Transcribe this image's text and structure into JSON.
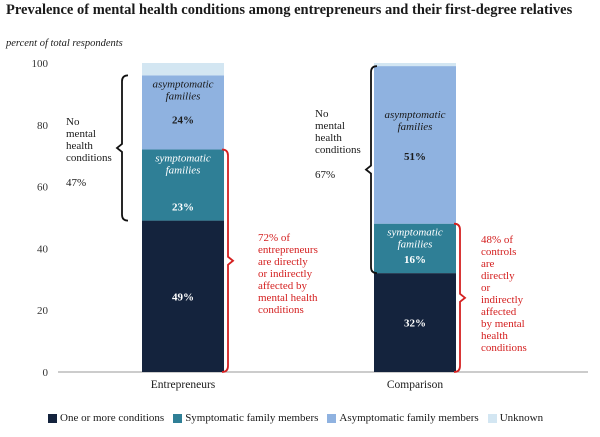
{
  "title": "Prevalence of mental health conditions among entrepreneurs and their first-degree relatives",
  "subtitle": "percent of total respondents",
  "chart_data": {
    "type": "bar",
    "stacked": true,
    "categories": [
      "Entrepreneurs",
      "Comparison"
    ],
    "ylim": [
      0,
      100
    ],
    "yticks": [
      0,
      20,
      40,
      60,
      80,
      100
    ],
    "series": [
      {
        "name": "One or more conditions",
        "color": "#14233d",
        "values": [
          49,
          32
        ],
        "labels": [
          "49%",
          "32%"
        ],
        "inner_label": [
          "",
          ""
        ]
      },
      {
        "name": "Symptomatic family members",
        "color": "#2f7f96",
        "values": [
          23,
          16
        ],
        "labels": [
          "23%",
          "16%"
        ],
        "inner_label": [
          "symptomatic families",
          "symptomatic families"
        ]
      },
      {
        "name": "Asymptomatic family members",
        "color": "#8fb2e0",
        "values": [
          24,
          51
        ],
        "labels": [
          "24%",
          "51%"
        ],
        "inner_label": [
          "asymptomatic families",
          "asymptomatic families"
        ]
      },
      {
        "name": "Unknown",
        "color": "#d3e6f2",
        "values": [
          4,
          1
        ],
        "labels": [
          "",
          ""
        ],
        "inner_label": [
          "",
          ""
        ]
      }
    ],
    "annotations": {
      "no_condition": [
        {
          "text": "No mental health conditions",
          "value": "47%"
        },
        {
          "text": "No mental health conditions",
          "value": "67%"
        }
      ],
      "affected": [
        "72% of entrepreneurs are directly or indirectly affected by mental health conditions",
        "48% of controls are directly or indirectly affected by mental health conditions"
      ]
    },
    "legend_position": "bottom"
  }
}
